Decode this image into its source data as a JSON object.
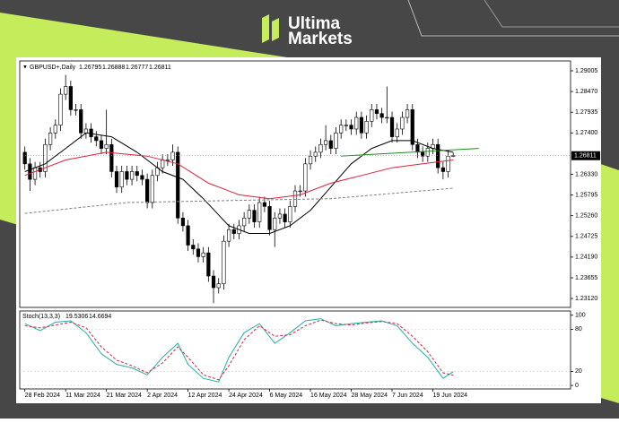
{
  "header": {
    "brand_line1": "Ultima",
    "brand_line2": "Markets"
  },
  "chart_data": [
    {
      "type": "candlestick",
      "title": "GBPUSD+,Daily",
      "xlim": [
        -1,
        107
      ],
      "ylim": [
        1.2289,
        1.2926
      ],
      "up_color": "#ffffff",
      "down_color": "#000000",
      "outline_color": "#000000",
      "yticks": [
        1.29005,
        {
          "value": 1.2847,
          "label": "1.28470"
        },
        1.27935,
        {
          "value": 1.274,
          "label": "1.27400"
        },
        {
          "value": 1.2633,
          "label": "1.26330"
        },
        1.25795,
        {
          "value": 1.2526,
          "label": "1.25260"
        },
        1.24725,
        {
          "value": 1.2419,
          "label": "1.24190"
        },
        1.23655,
        {
          "value": 1.2312,
          "label": "1.23120"
        }
      ],
      "xticks": [
        {
          "value": 0,
          "label": "28 Feb 2024"
        },
        {
          "value": 8,
          "label": "11 Mar 2024"
        },
        {
          "value": 16,
          "label": "21 Mar 2024"
        },
        {
          "value": 24,
          "label": "2 Apr 2024"
        },
        {
          "value": 32,
          "label": "12 Apr 2024"
        },
        {
          "value": 40,
          "label": "24 Apr 2024"
        },
        {
          "value": 48,
          "label": "6 May 2024"
        },
        {
          "value": 56,
          "label": "16 May 2024"
        },
        {
          "value": 64,
          "label": "28 May 2024"
        },
        {
          "value": 72,
          "label": "7 Jun 2024"
        },
        {
          "value": 80,
          "label": "19 Jun 2024"
        }
      ],
      "open": [
        1.269,
        1.266,
        1.262,
        1.265,
        1.264,
        1.271,
        1.274,
        1.276,
        1.284,
        1.286,
        1.28,
        1.28,
        1.274,
        1.275,
        1.273,
        1.272,
        1.27,
        1.271,
        1.264,
        1.26,
        1.264,
        1.262,
        1.264,
        1.263,
        1.262,
        1.256,
        1.263,
        1.265,
        1.267,
        1.267,
        1.269,
        1.252,
        1.25,
        1.245,
        1.244,
        1.242,
        1.243,
        1.237,
        1.234,
        1.235,
        1.246,
        1.249,
        1.248,
        1.25,
        1.252,
        1.254,
        1.251,
        1.256,
        1.255,
        1.249,
        1.252,
        1.253,
        1.251,
        1.255,
        1.259,
        1.259,
        1.266,
        1.268,
        1.269,
        1.271,
        1.272,
        1.27,
        1.274,
        1.276,
        1.276,
        1.275,
        1.278,
        1.274,
        1.277,
        1.28,
        1.279,
        1.278,
        1.278,
        1.273,
        1.275,
        1.278,
        1.28,
        1.271,
        1.269,
        1.268,
        1.27,
        1.271,
        1.265,
        1.264,
        1.26795
      ],
      "high": [
        1.2705,
        1.2675,
        1.2665,
        1.2665,
        1.2725,
        1.2755,
        1.2775,
        1.2855,
        1.289,
        1.2875,
        1.2815,
        1.2815,
        1.2765,
        1.2765,
        1.2745,
        1.2735,
        1.28,
        1.2725,
        1.2655,
        1.2655,
        1.2655,
        1.2655,
        1.2655,
        1.2645,
        1.2635,
        1.2645,
        1.2665,
        1.2685,
        1.2685,
        1.271,
        1.2705,
        1.2535,
        1.2515,
        1.2465,
        1.2455,
        1.2445,
        1.2445,
        1.2385,
        1.2365,
        1.2475,
        1.2505,
        1.2505,
        1.2515,
        1.2535,
        1.2555,
        1.2555,
        1.2575,
        1.2575,
        1.2565,
        1.2535,
        1.2545,
        1.2545,
        1.2565,
        1.2605,
        1.2605,
        1.2675,
        1.2695,
        1.2705,
        1.2725,
        1.276,
        1.2735,
        1.2755,
        1.2775,
        1.2775,
        1.2775,
        1.2795,
        1.2795,
        1.2785,
        1.2815,
        1.2815,
        1.2805,
        1.286,
        1.2795,
        1.2765,
        1.2795,
        1.2815,
        1.2815,
        1.2725,
        1.2705,
        1.2715,
        1.2725,
        1.2725,
        1.2665,
        1.2695,
        1.26888
      ],
      "low": [
        1.2645,
        1.259,
        1.2605,
        1.2625,
        1.2625,
        1.2695,
        1.2725,
        1.2745,
        1.2825,
        1.2785,
        1.2785,
        1.2725,
        1.2725,
        1.2715,
        1.2705,
        1.2685,
        1.2685,
        1.2625,
        1.2585,
        1.2585,
        1.2605,
        1.2605,
        1.2615,
        1.2605,
        1.2545,
        1.2545,
        1.2615,
        1.2635,
        1.2655,
        1.2655,
        1.2505,
        1.2485,
        1.2435,
        1.2425,
        1.2405,
        1.2405,
        1.2355,
        1.23,
        1.2325,
        1.2335,
        1.2445,
        1.2465,
        1.2465,
        1.2485,
        1.2505,
        1.2495,
        1.2495,
        1.2535,
        1.2475,
        1.2445,
        1.2505,
        1.2495,
        1.2495,
        1.2535,
        1.2575,
        1.2575,
        1.2645,
        1.2665,
        1.2675,
        1.2695,
        1.2685,
        1.2685,
        1.2725,
        1.2745,
        1.2735,
        1.2735,
        1.2725,
        1.2725,
        1.2755,
        1.2775,
        1.2765,
        1.2765,
        1.2715,
        1.2715,
        1.2735,
        1.2765,
        1.2695,
        1.2675,
        1.2665,
        1.2665,
        1.2685,
        1.2635,
        1.262,
        1.2625,
        1.26777
      ],
      "close": [
        1.266,
        1.262,
        1.265,
        1.264,
        1.271,
        1.274,
        1.276,
        1.284,
        1.286,
        1.28,
        1.28,
        1.274,
        1.275,
        1.273,
        1.272,
        1.27,
        1.271,
        1.264,
        1.26,
        1.264,
        1.262,
        1.264,
        1.263,
        1.262,
        1.256,
        1.263,
        1.265,
        1.267,
        1.267,
        1.269,
        1.252,
        1.25,
        1.245,
        1.244,
        1.242,
        1.243,
        1.237,
        1.234,
        1.235,
        1.246,
        1.249,
        1.248,
        1.25,
        1.252,
        1.254,
        1.251,
        1.256,
        1.255,
        1.249,
        1.252,
        1.253,
        1.251,
        1.255,
        1.259,
        1.259,
        1.266,
        1.268,
        1.269,
        1.271,
        1.272,
        1.27,
        1.274,
        1.276,
        1.276,
        1.275,
        1.278,
        1.274,
        1.277,
        1.28,
        1.279,
        1.278,
        1.278,
        1.273,
        1.275,
        1.278,
        1.28,
        1.271,
        1.269,
        1.268,
        1.27,
        1.271,
        1.265,
        1.264,
        1.268,
        1.26811
      ],
      "lines": [
        {
          "color": "#000000",
          "dash": false,
          "x": [
            0,
            4,
            8,
            12,
            17,
            22,
            27,
            31,
            35,
            40,
            44,
            48,
            52,
            56,
            60,
            64,
            68,
            72,
            76,
            80,
            84
          ],
          "values": [
            1.264,
            1.266,
            1.27,
            1.274,
            1.273,
            1.269,
            1.264,
            1.262,
            1.257,
            1.25,
            1.248,
            1.248,
            1.25,
            1.254,
            1.26,
            1.266,
            1.27,
            1.272,
            1.272,
            1.27,
            1.269
          ]
        },
        {
          "color": "#e0203c",
          "dash": false,
          "x": [
            0,
            8,
            16,
            24,
            30,
            36,
            42,
            48,
            54,
            60,
            66,
            72,
            78,
            84
          ],
          "values": [
            1.263,
            1.267,
            1.269,
            1.268,
            1.266,
            1.261,
            1.258,
            1.257,
            1.258,
            1.261,
            1.263,
            1.265,
            1.266,
            1.267
          ]
        },
        {
          "color": "#808080",
          "dash": true,
          "x": [
            0,
            20,
            40,
            60,
            84
          ],
          "values": [
            1.2532,
            1.256,
            1.2565,
            1.257,
            1.2597
          ]
        },
        {
          "color": "#1e8c1e",
          "dash": false,
          "x": [
            62,
            89
          ],
          "values": [
            1.268,
            1.27
          ]
        }
      ]
    },
    {
      "type": "line",
      "title": "Stoch(13,3,3)",
      "xlim": [
        -1,
        107
      ],
      "ylim": [
        -5,
        106
      ],
      "yticks": [
        100,
        80,
        20,
        0
      ],
      "series": [
        {
          "color": "#20b0a8",
          "dash": false,
          "x": [
            0,
            3,
            6,
            9,
            12,
            15,
            18,
            21,
            24,
            27,
            30,
            32,
            35,
            38,
            40,
            43,
            46,
            49,
            52,
            55,
            58,
            61,
            64,
            67,
            70,
            73,
            76,
            79,
            82,
            84
          ],
          "values": [
            88,
            78,
            90,
            92,
            75,
            45,
            30,
            25,
            15,
            40,
            60,
            30,
            10,
            5,
            40,
            75,
            88,
            60,
            75,
            92,
            95,
            85,
            88,
            90,
            92,
            85,
            60,
            40,
            10,
            19.5306
          ]
        },
        {
          "color": "#e0203c",
          "dash": true,
          "x": [
            0,
            3,
            6,
            9,
            12,
            15,
            18,
            21,
            24,
            27,
            30,
            32,
            35,
            38,
            40,
            43,
            46,
            49,
            52,
            55,
            58,
            61,
            64,
            67,
            70,
            73,
            76,
            79,
            82,
            84
          ],
          "values": [
            85,
            82,
            86,
            90,
            82,
            55,
            36,
            28,
            18,
            32,
            55,
            40,
            15,
            8,
            28,
            65,
            85,
            70,
            72,
            85,
            93,
            88,
            86,
            89,
            91,
            88,
            70,
            48,
            18,
            14.6694
          ]
        }
      ]
    }
  ]
}
